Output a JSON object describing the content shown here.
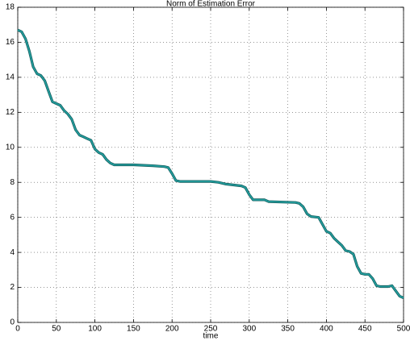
{
  "chart_data": {
    "type": "line",
    "title": "Norm of Estimation Error",
    "x_label": "time",
    "x": [
      0,
      5,
      10,
      15,
      20,
      25,
      30,
      35,
      40,
      45,
      50,
      55,
      60,
      65,
      70,
      75,
      80,
      85,
      90,
      95,
      100,
      105,
      110,
      115,
      120,
      125,
      150,
      175,
      190,
      195,
      200,
      205,
      210,
      250,
      260,
      270,
      280,
      290,
      295,
      300,
      305,
      320,
      325,
      360,
      365,
      370,
      375,
      380,
      390,
      395,
      400,
      405,
      410,
      415,
      420,
      425,
      430,
      435,
      440,
      445,
      450,
      455,
      460,
      465,
      470,
      480,
      485,
      490,
      495,
      500
    ],
    "values": [
      16.7,
      16.6,
      16.2,
      15.5,
      14.6,
      14.2,
      14.1,
      13.8,
      13.2,
      12.6,
      12.5,
      12.4,
      12.1,
      11.9,
      11.6,
      11.0,
      10.7,
      10.6,
      10.5,
      10.4,
      9.9,
      9.7,
      9.6,
      9.3,
      9.1,
      9.0,
      9.0,
      8.95,
      8.9,
      8.85,
      8.5,
      8.1,
      8.05,
      8.05,
      8.0,
      7.9,
      7.85,
      7.8,
      7.7,
      7.3,
      7.0,
      7.0,
      6.9,
      6.85,
      6.8,
      6.6,
      6.2,
      6.05,
      6.0,
      5.6,
      5.2,
      5.1,
      4.8,
      4.6,
      4.4,
      4.1,
      4.05,
      3.9,
      3.2,
      2.8,
      2.75,
      2.75,
      2.5,
      2.1,
      2.05,
      2.05,
      2.1,
      1.8,
      1.5,
      1.4
    ],
    "color": "#23a0a0",
    "xlim": [
      0,
      500
    ],
    "xticks": [
      0,
      50,
      100,
      150,
      200,
      250,
      300,
      350,
      400,
      450,
      500
    ],
    "ylim": [
      0,
      18
    ],
    "yticks": [
      0,
      2,
      4,
      6,
      8,
      10,
      12,
      14,
      16,
      18
    ],
    "grid": true
  }
}
